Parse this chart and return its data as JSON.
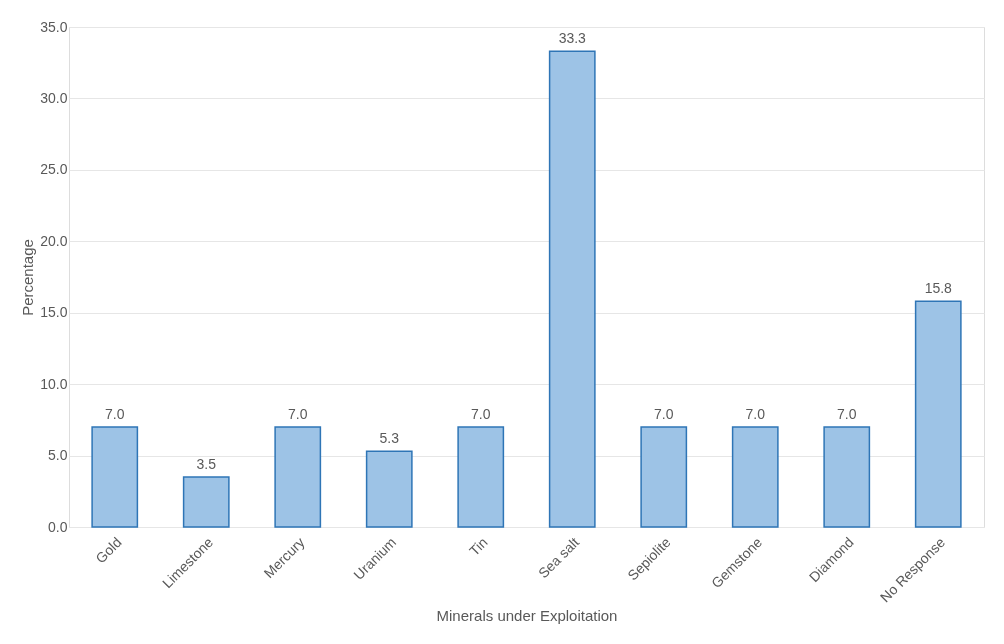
{
  "chart_data": {
    "type": "bar",
    "xlabel": "Minerals under Exploitation",
    "ylabel": "Percentage",
    "categories": [
      "Gold",
      "Limestone",
      "Mercury",
      "Uranium",
      "Tin",
      "Sea salt",
      "Sepiolite",
      "Gemstone",
      "Diamond",
      "No Response"
    ],
    "values": [
      7.0,
      3.5,
      7.0,
      5.3,
      7.0,
      33.3,
      7.0,
      7.0,
      7.0,
      15.8
    ],
    "value_labels": [
      "7.0",
      "3.5",
      "7.0",
      "5.3",
      "7.0",
      "33.3",
      "7.0",
      "7.0",
      "7.0",
      "15.8"
    ],
    "color": "#9dc3e6",
    "ylim": [
      0,
      35
    ],
    "yticks": [
      {
        "value": 0,
        "label": "0.0"
      },
      {
        "value": 5,
        "label": "5.0"
      },
      {
        "value": 10,
        "label": "10.0"
      },
      {
        "value": 15,
        "label": "15.0"
      },
      {
        "value": 20,
        "label": "20.0"
      },
      {
        "value": 25,
        "label": "25.0"
      },
      {
        "value": 30,
        "label": "30.0"
      },
      {
        "value": 35,
        "label": "35.0"
      }
    ],
    "grid": "y"
  }
}
